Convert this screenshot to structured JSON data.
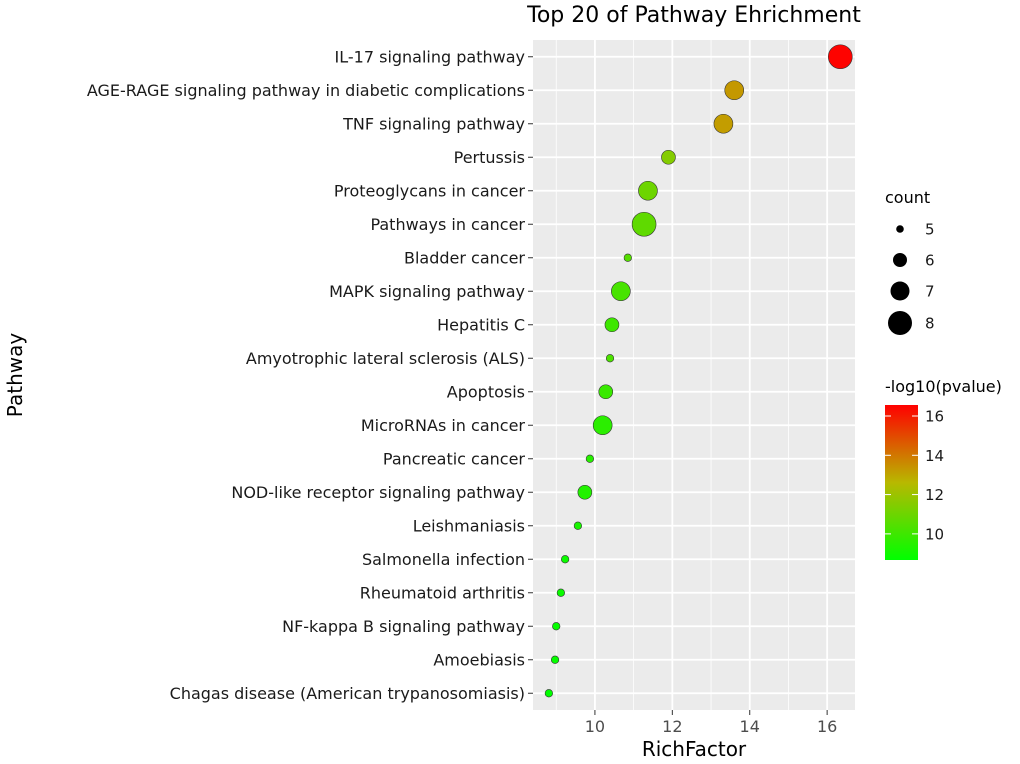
{
  "chart_data": {
    "type": "scatter",
    "title": "Top 20 of Pathway Ehrichment",
    "xlabel": "RichFactor",
    "ylabel": "Pathway",
    "xlim": [
      8.4,
      16.72
    ],
    "xticks": [
      10,
      12,
      14,
      16
    ],
    "grid": true,
    "points": [
      {
        "pathway": "IL-17 signaling pathway",
        "richfactor": 16.34,
        "count": 8,
        "neglog10p": 16.5
      },
      {
        "pathway": "AGE-RAGE signaling pathway in diabetic complications",
        "richfactor": 13.6,
        "count": 7,
        "neglog10p": 13.3
      },
      {
        "pathway": "TNF signaling pathway",
        "richfactor": 13.32,
        "count": 7,
        "neglog10p": 13.2
      },
      {
        "pathway": "Pertussis",
        "richfactor": 11.9,
        "count": 6,
        "neglog10p": 11.5
      },
      {
        "pathway": "Proteoglycans in cancer",
        "richfactor": 11.37,
        "count": 7,
        "neglog10p": 11.0
      },
      {
        "pathway": "Pathways in cancer",
        "richfactor": 11.27,
        "count": 8,
        "neglog10p": 10.7
      },
      {
        "pathway": "Bladder cancer",
        "richfactor": 10.85,
        "count": 5,
        "neglog10p": 10.5
      },
      {
        "pathway": "MAPK signaling pathway",
        "richfactor": 10.67,
        "count": 7,
        "neglog10p": 10.2
      },
      {
        "pathway": "Hepatitis C",
        "richfactor": 10.44,
        "count": 6,
        "neglog10p": 10.0
      },
      {
        "pathway": "Amyotrophic lateral sclerosis (ALS)",
        "richfactor": 10.39,
        "count": 5,
        "neglog10p": 10.3
      },
      {
        "pathway": "Apoptosis",
        "richfactor": 10.28,
        "count": 6,
        "neglog10p": 9.9
      },
      {
        "pathway": "MicroRNAs in cancer",
        "richfactor": 10.2,
        "count": 7,
        "neglog10p": 9.6
      },
      {
        "pathway": "Pancreatic cancer",
        "richfactor": 9.87,
        "count": 5,
        "neglog10p": 9.5
      },
      {
        "pathway": "NOD-like receptor signaling pathway",
        "richfactor": 9.74,
        "count": 6,
        "neglog10p": 9.4
      },
      {
        "pathway": "Leishmaniasis",
        "richfactor": 9.56,
        "count": 5,
        "neglog10p": 9.2
      },
      {
        "pathway": "Salmonella infection",
        "richfactor": 9.23,
        "count": 5,
        "neglog10p": 8.9
      },
      {
        "pathway": "Rheumatoid arthritis",
        "richfactor": 9.12,
        "count": 5,
        "neglog10p": 8.9
      },
      {
        "pathway": "NF-kappa B signaling pathway",
        "richfactor": 9.0,
        "count": 5,
        "neglog10p": 8.8
      },
      {
        "pathway": "Amoebiasis",
        "richfactor": 8.97,
        "count": 5,
        "neglog10p": 8.8
      },
      {
        "pathway": "Chagas disease (American trypanosomiasis)",
        "richfactor": 8.81,
        "count": 5,
        "neglog10p": 8.7
      }
    ],
    "legend_size": {
      "title": "count",
      "values": [
        5,
        6,
        7,
        8
      ],
      "placement": "right"
    },
    "legend_color": {
      "title": "-log10(pvalue)",
      "range": [
        8.67,
        16.56
      ],
      "ticks": [
        10,
        12,
        14,
        16
      ],
      "low_color": "#00ff00",
      "mid_color": "#b8b800",
      "high_color": "#ff0000",
      "placement": "right"
    },
    "colors": {
      "panel": "#ebebeb",
      "grid": "#ffffff",
      "point_stroke": "#333333"
    }
  }
}
